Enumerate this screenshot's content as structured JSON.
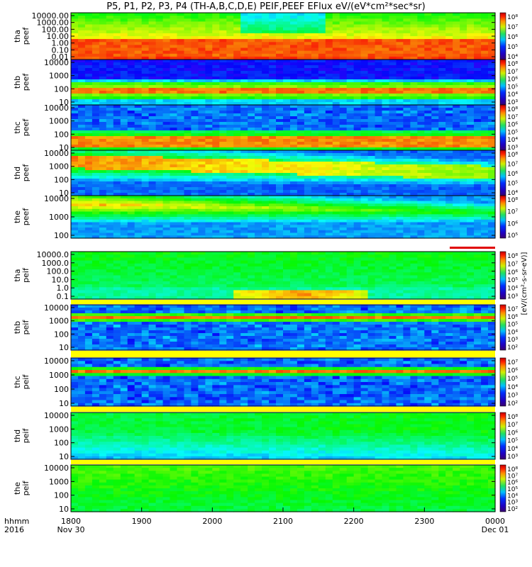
{
  "title": "P5, P1, P2, P3, P4 (TH-A,B,C,D,E) PEIF,PEEF EFlux eV/(eV*cm²*sec*sr)",
  "xaxis": {
    "row_label": "hhmm",
    "year_label": "2016",
    "ticks": [
      "1800",
      "1900",
      "2000",
      "2100",
      "2200",
      "2300",
      "0000"
    ],
    "tick_sublabels": [
      "Nov 30",
      "",
      "",
      "",
      "",
      "",
      "Dec 01"
    ]
  },
  "colorbar_unit_label": "[eV/(cm²-s-sr-eV)]",
  "colorbar_labels": {
    "peef_a": [
      "10⁸",
      "10⁷",
      "10⁶",
      "10⁵",
      "10⁴"
    ],
    "peef_b": [
      "10⁸",
      "10⁷",
      "10⁶",
      "10⁵",
      "10⁴",
      "10³"
    ],
    "peef_c": [
      "10⁸",
      "10⁷",
      "10⁶",
      "10⁵",
      "10⁴",
      "10³"
    ],
    "peef_d": [
      "10⁸",
      "10⁷",
      "10⁶",
      "10⁵",
      "10⁴"
    ],
    "peef_e": [
      "10⁸",
      "10⁷",
      "10⁶",
      "10⁵"
    ],
    "peif_a": [
      "10⁸",
      "10⁷",
      "10⁶",
      "10⁵",
      "10⁴",
      "10³"
    ],
    "peif_b": [
      "10⁷",
      "10⁶",
      "10⁵",
      "10⁴",
      "10³",
      "10²"
    ],
    "peif_c": [
      "10⁷",
      "10⁶",
      "10⁵",
      "10⁴",
      "10³",
      "10²"
    ],
    "peif_d": [
      "10⁸",
      "10⁷",
      "10⁶",
      "10⁵",
      "10⁴",
      "10³"
    ],
    "peif_e": [
      "10⁸",
      "10⁷",
      "10⁶",
      "10⁵",
      "10⁴",
      "10³",
      "10²"
    ]
  },
  "chart_data": {
    "type": "heatmap",
    "x_range": [
      "2016-11-30 18:00",
      "2016-12-01 00:00"
    ],
    "colormap": "rainbow (purple-blue-cyan-green-yellow-red)",
    "panels": [
      {
        "id": "peef_a",
        "ylabel": [
          "tha",
          "peef"
        ],
        "yticks": [
          "10000.00",
          "1000.00",
          "100.00",
          "10.00",
          "1.00",
          "0.10",
          "0.01"
        ],
        "ylog": true
      },
      {
        "id": "peef_b",
        "ylabel": [
          "thb",
          "peef"
        ],
        "yticks": [
          "10000",
          "1000",
          "100",
          "10"
        ],
        "ylog": true
      },
      {
        "id": "peef_c",
        "ylabel": [
          "thc",
          "peef"
        ],
        "yticks": [
          "10000",
          "1000",
          "100",
          "10"
        ],
        "ylog": true
      },
      {
        "id": "peef_d",
        "ylabel": [
          "thd",
          "peef"
        ],
        "yticks": [
          "10000",
          "1000",
          "100",
          "10"
        ],
        "ylog": true
      },
      {
        "id": "peef_e",
        "ylabel": [
          "the",
          "peef"
        ],
        "yticks": [
          "10000",
          "1000",
          "100"
        ],
        "ylog": true
      },
      {
        "id": "peif_a",
        "ylabel": [
          "tha",
          "peif"
        ],
        "yticks": [
          "10000.0",
          "1000.0",
          "100.0",
          "10.0",
          "1.0",
          "0.1"
        ],
        "ylog": true
      },
      {
        "id": "peif_b",
        "ylabel": [
          "thb",
          "peif"
        ],
        "yticks": [
          "10000",
          "1000",
          "100",
          "10"
        ],
        "ylog": true
      },
      {
        "id": "peif_c",
        "ylabel": [
          "thc",
          "peif"
        ],
        "yticks": [
          "10000",
          "1000",
          "100",
          "10"
        ],
        "ylog": true
      },
      {
        "id": "peif_d",
        "ylabel": [
          "thd",
          "peif"
        ],
        "yticks": [
          "10000",
          "1000",
          "100",
          "10"
        ],
        "ylog": true
      },
      {
        "id": "peif_e",
        "ylabel": [
          "the",
          "peif"
        ],
        "yticks": [
          "10000",
          "1000",
          "100",
          "10"
        ],
        "ylog": true
      }
    ]
  }
}
